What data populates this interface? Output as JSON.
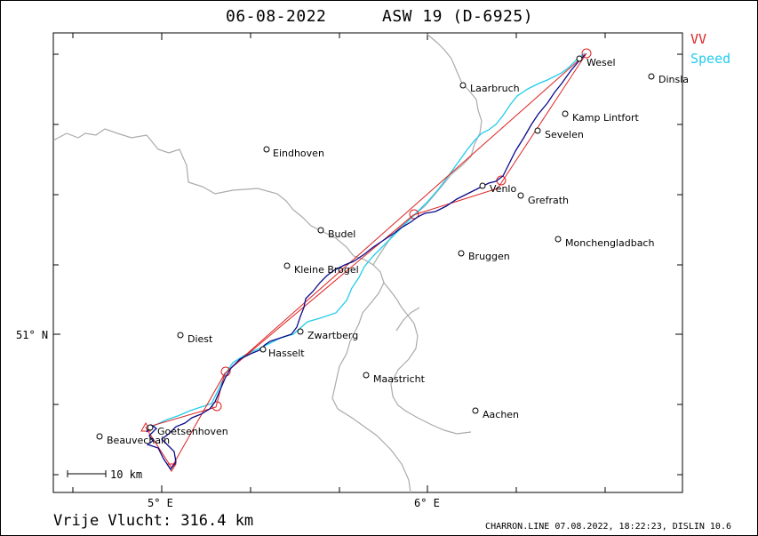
{
  "header": {
    "date": "06-08-2022",
    "glider": "ASW 19 (D-6925)"
  },
  "legend": {
    "vv": {
      "label": "VV",
      "color": "#dd2222"
    },
    "speed": {
      "label": "Speed",
      "color": "#22ccee"
    }
  },
  "colors": {
    "track": "#0b0b8a",
    "border": "#aaaaaa",
    "frame": "#000000"
  },
  "axes": {
    "lon_ticks": [
      "5° E",
      "6° E"
    ],
    "lat_ticks": [
      "51° N"
    ]
  },
  "scale_bar": {
    "label": "10 km"
  },
  "places": [
    {
      "name": "Wesel"
    },
    {
      "name": "Dinsla"
    },
    {
      "name": "Laarbruch"
    },
    {
      "name": "Kamp Lintfort"
    },
    {
      "name": "Sevelen"
    },
    {
      "name": "Eindhoven"
    },
    {
      "name": "Venlo"
    },
    {
      "name": "Grefrath"
    },
    {
      "name": "Budel"
    },
    {
      "name": "Monchengladbach"
    },
    {
      "name": "Bruggen"
    },
    {
      "name": "Kleine Brogel"
    },
    {
      "name": "Zwartberg"
    },
    {
      "name": "Diest"
    },
    {
      "name": "Hasselt"
    },
    {
      "name": "Maastricht"
    },
    {
      "name": "Aachen"
    },
    {
      "name": "Goetsenhoven"
    },
    {
      "name": "Beauvechain"
    }
  ],
  "footer": {
    "distance_text": "Vrije Vlucht:  316.4 km",
    "credit": "CHARRON.LINE 07.08.2022, 18:22:23, DISLIN 10.6"
  }
}
